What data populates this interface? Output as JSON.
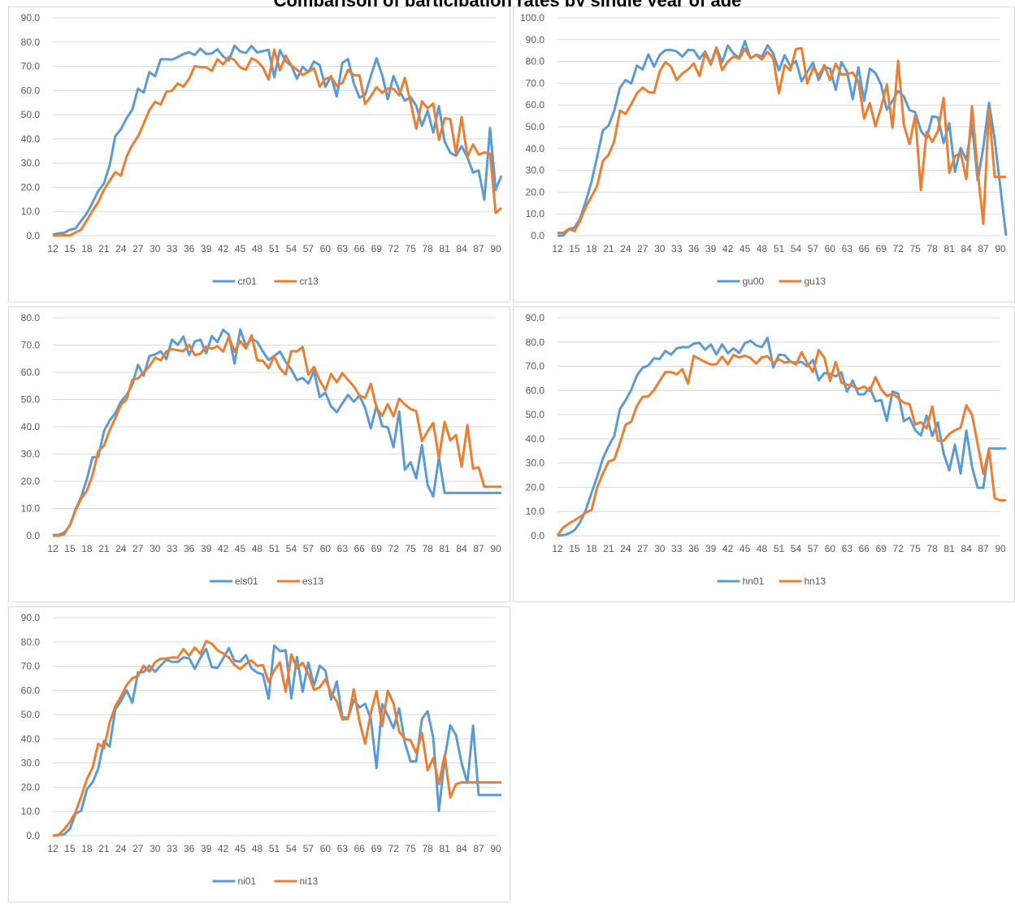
{
  "page_title": "Comparison of participation rates by single year of age",
  "colors": {
    "series1": "#5B9BD5",
    "series2": "#ED7D31",
    "grid": "#D9D9D9",
    "axis_text": "#595959",
    "border": "#D9D9D9"
  },
  "chart_data": [
    {
      "type": "line",
      "x_start": 12,
      "x_end": 90,
      "x_tick_labels": [
        "12",
        "15",
        "18",
        "21",
        "24",
        "27",
        "30",
        "33",
        "36",
        "39",
        "42",
        "45",
        "48",
        "51",
        "54",
        "57",
        "60",
        "63",
        "66",
        "69",
        "72",
        "75",
        "78",
        "81",
        "84",
        "87",
        "90"
      ],
      "ylim": [
        0,
        90
      ],
      "y_tick_labels": [
        "0.0",
        "10.0",
        "20.0",
        "30.0",
        "40.0",
        "50.0",
        "60.0",
        "70.0",
        "80.0",
        "90.0"
      ],
      "grid": true,
      "legend_position": "bottom",
      "series": [
        {
          "name": "cr01",
          "values": [
            0.4,
            1.0,
            1.2,
            2.5,
            3.0,
            6.2,
            9.3,
            13.7,
            18.5,
            21.6,
            29.0,
            41.2,
            44.0,
            48.6,
            52.1,
            60.7,
            59.2,
            67.6,
            65.9,
            72.9,
            72.9,
            72.8,
            73.8,
            75.1,
            75.8,
            74.7,
            77.3,
            75.1,
            75.3,
            77.0,
            74.1,
            72.4,
            78.5,
            76.1,
            75.5,
            78.4,
            75.7,
            76.3,
            76.8,
            65.5,
            76.7,
            72.1,
            70.3,
            64.8,
            69.8,
            67.6,
            72.0,
            70.5,
            61.5,
            66.0,
            57.5,
            71.5,
            73.0,
            63.0,
            57.1,
            58.2,
            66.0,
            73.3,
            66.4,
            56.4,
            66.0,
            60.1,
            55.8,
            57.3,
            53.7,
            45.4,
            51.6,
            42.6,
            53.5,
            39.0,
            34.3,
            33.0,
            37.0,
            32.4,
            26.1,
            27.0,
            14.9,
            44.5,
            18.9,
            24.8
          ]
        },
        {
          "name": "cr13",
          "values": [
            0.1,
            0.1,
            0.2,
            0.1,
            1.3,
            2.6,
            6.4,
            10.3,
            13.9,
            19.0,
            22.7,
            26.3,
            24.8,
            32.7,
            37.5,
            41.0,
            46.3,
            51.9,
            55.3,
            54.2,
            59.5,
            59.9,
            62.9,
            61.6,
            64.9,
            70.1,
            69.6,
            69.6,
            68.1,
            72.9,
            70.8,
            73.9,
            72.5,
            69.5,
            68.6,
            73.3,
            72.1,
            69.5,
            64.5,
            76.9,
            68.3,
            74.4,
            70.4,
            68.6,
            66.4,
            67.7,
            69.2,
            61.7,
            64.8,
            65.6,
            61.9,
            63.1,
            68.5,
            66.3,
            66.3,
            54.4,
            57.6,
            61.4,
            59.0,
            60.9,
            60.7,
            58.0,
            65.2,
            55.1,
            44.2,
            55.5,
            52.7,
            54.6,
            39.6,
            48.5,
            48.2,
            34.2,
            49.1,
            32.6,
            37.7,
            33.5,
            34.4,
            34.0,
            9.4,
            11.5
          ]
        }
      ]
    },
    {
      "type": "line",
      "x_start": 12,
      "x_end": 90,
      "x_tick_labels": [
        "12",
        "15",
        "18",
        "21",
        "24",
        "27",
        "30",
        "33",
        "36",
        "39",
        "42",
        "45",
        "48",
        "51",
        "54",
        "57",
        "60",
        "63",
        "66",
        "69",
        "72",
        "75",
        "78",
        "81",
        "84",
        "87",
        "90"
      ],
      "ylim": [
        0,
        100
      ],
      "y_tick_labels": [
        "0.0",
        "10.0",
        "20.0",
        "30.0",
        "40.0",
        "50.0",
        "60.0",
        "70.0",
        "80.0",
        "90.0",
        "100.0"
      ],
      "grid": true,
      "legend_position": "bottom",
      "series": [
        {
          "name": "gu00",
          "values": [
            0.0,
            0.1,
            2.9,
            3.8,
            8.0,
            15.9,
            24.8,
            36.4,
            48.4,
            50.5,
            57.5,
            67.9,
            71.5,
            69.9,
            78.1,
            76.3,
            83.3,
            77.6,
            83.0,
            85.2,
            85.3,
            84.6,
            82.2,
            85.3,
            85.2,
            81.2,
            84.6,
            79.1,
            86.4,
            79.6,
            87.3,
            83.6,
            81.7,
            89.3,
            81.5,
            83.1,
            82.2,
            87.4,
            83.6,
            75.9,
            82.9,
            77.8,
            80.2,
            70.9,
            75.3,
            79.4,
            71.5,
            77.5,
            76.7,
            66.9,
            79.7,
            75.3,
            62.7,
            77.3,
            61.9,
            76.7,
            74.7,
            69.3,
            57.8,
            61.9,
            66.4,
            63.9,
            57.7,
            56.7,
            48.2,
            44.7,
            54.8,
            54.3,
            42.6,
            51.6,
            29.3,
            40.3,
            34.9,
            50.8,
            25.4,
            40.6,
            61.0,
            44.3,
            22.2,
            0.0
          ]
        },
        {
          "name": "gu13",
          "values": [
            1.3,
            1.3,
            3.2,
            2.1,
            6.9,
            13.2,
            18.0,
            23.0,
            34.4,
            37.1,
            43.5,
            57.5,
            55.9,
            60.4,
            65.4,
            68.0,
            66.0,
            65.6,
            75.4,
            79.7,
            77.6,
            71.5,
            74.5,
            76.3,
            79.1,
            73.3,
            83.8,
            78.5,
            86.0,
            76.0,
            79.9,
            82.2,
            81.3,
            85.8,
            81.5,
            83.0,
            80.9,
            84.4,
            81.5,
            65.4,
            78.4,
            75.9,
            85.7,
            86.1,
            69.8,
            77.0,
            73.5,
            78.3,
            71.4,
            79.0,
            74.0,
            74.2,
            74.9,
            70.8,
            53.8,
            60.9,
            50.2,
            59.0,
            69.4,
            49.6,
            80.3,
            50.9,
            42.1,
            55.3,
            21.0,
            47.7,
            43.1,
            47.9,
            63.2,
            28.9,
            36.5,
            38.0,
            26.0,
            59.4,
            29.6,
            5.5,
            58.1,
            27.0,
            27.0,
            27.0
          ]
        }
      ]
    },
    {
      "type": "line",
      "x_start": 12,
      "x_end": 90,
      "x_tick_labels": [
        "12",
        "15",
        "18",
        "21",
        "24",
        "27",
        "30",
        "33",
        "36",
        "39",
        "42",
        "45",
        "48",
        "51",
        "54",
        "57",
        "60",
        "63",
        "66",
        "69",
        "72",
        "75",
        "78",
        "81",
        "84",
        "87",
        "90"
      ],
      "ylim": [
        0,
        80
      ],
      "y_tick_labels": [
        "0.0",
        "10.0",
        "20.0",
        "30.0",
        "40.0",
        "50.0",
        "60.0",
        "70.0",
        "80.0"
      ],
      "grid": true,
      "legend_position": "bottom",
      "series": [
        {
          "name": "els01",
          "values": [
            0.2,
            0.3,
            1.1,
            3.7,
            9.6,
            14.2,
            20.8,
            28.8,
            28.9,
            38.4,
            42.3,
            45.0,
            49.2,
            51.7,
            55.4,
            62.8,
            58.8,
            65.9,
            66.6,
            67.7,
            64.8,
            72.0,
            70.1,
            73.1,
            66.4,
            71.3,
            72.0,
            67.0,
            73.3,
            71.1,
            75.6,
            73.8,
            63.2,
            75.7,
            69.8,
            72.4,
            71.2,
            67.6,
            64.5,
            66.0,
            67.6,
            63.9,
            61.0,
            57.1,
            57.9,
            55.9,
            60.5,
            50.9,
            52.5,
            47.5,
            45.3,
            48.6,
            51.7,
            49.2,
            51.5,
            46.9,
            39.4,
            47.8,
            40.2,
            39.8,
            32.5,
            45.6,
            24.2,
            27.0,
            21.1,
            33.3,
            18.6,
            14.4,
            28.8,
            15.7,
            15.7,
            15.7,
            15.7,
            15.7,
            15.7,
            15.7,
            15.7,
            15.7,
            15.7,
            15.7
          ]
        },
        {
          "name": "es13",
          "values": [
            0.0,
            0.0,
            0.5,
            4.0,
            9.2,
            13.6,
            16.5,
            22.3,
            31.0,
            33.0,
            38.7,
            43.1,
            48.1,
            50.1,
            57.3,
            57.8,
            59.9,
            62.2,
            65.4,
            64.4,
            67.6,
            68.5,
            68.1,
            67.8,
            70.1,
            66.3,
            66.9,
            69.4,
            68.6,
            69.6,
            67.6,
            73.1,
            67.6,
            71.5,
            68.7,
            73.6,
            64.4,
            64.2,
            61.5,
            65.9,
            61.4,
            59.2,
            67.8,
            67.7,
            69.3,
            59.1,
            62.0,
            57.0,
            53.4,
            59.4,
            56.3,
            59.7,
            57.2,
            54.9,
            51.5,
            50.6,
            55.8,
            47.0,
            44.0,
            48.3,
            43.8,
            50.3,
            48.2,
            46.5,
            45.7,
            34.7,
            38.3,
            41.4,
            28.5,
            41.8,
            35.0,
            37.0,
            25.3,
            40.6,
            24.6,
            25.1,
            18.0,
            18.0,
            18.0,
            18.0
          ]
        }
      ]
    },
    {
      "type": "line",
      "x_start": 12,
      "x_end": 90,
      "x_tick_labels": [
        "12",
        "15",
        "18",
        "21",
        "24",
        "27",
        "30",
        "33",
        "36",
        "39",
        "42",
        "45",
        "48",
        "51",
        "54",
        "57",
        "60",
        "63",
        "66",
        "69",
        "72",
        "75",
        "78",
        "81",
        "84",
        "87",
        "90"
      ],
      "ylim": [
        0,
        90
      ],
      "y_tick_labels": [
        "0.0",
        "10.0",
        "20.0",
        "30.0",
        "40.0",
        "50.0",
        "60.0",
        "70.0",
        "80.0",
        "90.0"
      ],
      "grid": true,
      "legend_position": "bottom",
      "series": [
        {
          "name": "hn01",
          "values": [
            0.0,
            0.2,
            0.9,
            2.3,
            5.6,
            10.6,
            17.7,
            24.4,
            31.9,
            37.0,
            41.2,
            52.4,
            55.9,
            60.3,
            66.2,
            69.4,
            70.3,
            73.3,
            73.0,
            76.3,
            74.8,
            77.4,
            77.9,
            77.8,
            79.3,
            79.7,
            76.8,
            79.0,
            74.9,
            79.1,
            75.4,
            77.4,
            75.5,
            79.5,
            80.5,
            78.6,
            77.9,
            81.7,
            69.5,
            74.8,
            74.6,
            71.9,
            71.4,
            71.8,
            70.0,
            72.6,
            64.2,
            67.2,
            66.9,
            65.8,
            67.5,
            59.5,
            64.1,
            58.4,
            58.4,
            61.2,
            55.5,
            56.0,
            47.5,
            59.5,
            58.7,
            47.3,
            48.8,
            43.6,
            41.4,
            49.6,
            41.2,
            46.8,
            34.1,
            27.0,
            37.5,
            25.7,
            43.5,
            28.5,
            19.8,
            19.8,
            36.0,
            36.0,
            36.0,
            36.0
          ]
        },
        {
          "name": "hn13",
          "values": [
            0.0,
            3.4,
            5.0,
            6.4,
            7.8,
            9.6,
            10.6,
            20.0,
            25.7,
            30.6,
            31.5,
            38.3,
            45.8,
            47.1,
            53.7,
            57.3,
            57.6,
            60.2,
            63.9,
            67.6,
            67.6,
            66.7,
            68.8,
            62.8,
            74.3,
            73.0,
            71.8,
            70.8,
            70.8,
            74.0,
            70.8,
            74.7,
            73.6,
            74.4,
            73.4,
            71.1,
            73.7,
            74.1,
            71.4,
            72.9,
            71.5,
            72.0,
            70.7,
            75.8,
            71.3,
            67.6,
            76.7,
            73.5,
            63.9,
            71.8,
            63.2,
            62.4,
            61.9,
            60.6,
            61.6,
            59.8,
            65.5,
            60.5,
            57.7,
            58.6,
            56.9,
            54.9,
            54.4,
            45.9,
            46.9,
            44.3,
            53.4,
            39.2,
            39.2,
            42.0,
            43.6,
            44.6,
            53.9,
            49.9,
            37.7,
            25.6,
            35.7,
            15.5,
            14.6,
            14.6
          ]
        }
      ]
    },
    {
      "type": "line",
      "x_start": 12,
      "x_end": 90,
      "x_tick_labels": [
        "12",
        "15",
        "18",
        "21",
        "24",
        "27",
        "30",
        "33",
        "36",
        "39",
        "42",
        "45",
        "48",
        "51",
        "54",
        "57",
        "60",
        "63",
        "66",
        "69",
        "72",
        "75",
        "78",
        "81",
        "84",
        "87",
        "90"
      ],
      "ylim": [
        0,
        90
      ],
      "y_tick_labels": [
        "0.0",
        "10.0",
        "20.0",
        "30.0",
        "40.0",
        "50.0",
        "60.0",
        "70.0",
        "80.0",
        "90.0"
      ],
      "grid": true,
      "legend_position": "bottom",
      "series": [
        {
          "name": "ni01",
          "values": [
            0.0,
            0.3,
            0.5,
            2.8,
            9.1,
            10.3,
            19.1,
            22.0,
            27.6,
            39.1,
            36.8,
            52.2,
            55.6,
            60.0,
            54.9,
            67.4,
            67.6,
            70.2,
            67.7,
            70.3,
            72.7,
            71.8,
            71.8,
            73.6,
            73.3,
            68.9,
            73.5,
            77.1,
            69.6,
            69.3,
            73.2,
            77.5,
            72.2,
            71.9,
            74.6,
            69.0,
            67.4,
            66.6,
            56.6,
            78.5,
            76.2,
            76.6,
            56.7,
            73.8,
            59.4,
            71.5,
            62.1,
            70.2,
            68.2,
            56.2,
            63.7,
            48.9,
            48.7,
            56.0,
            53.0,
            54.5,
            48.3,
            27.9,
            54.3,
            49.7,
            44.4,
            52.6,
            38.4,
            30.7,
            30.7,
            48.2,
            51.4,
            40.5,
            10.2,
            31.8,
            45.6,
            41.6,
            29.8,
            21.8,
            45.4,
            16.8,
            16.8,
            16.8,
            16.8,
            16.8
          ]
        },
        {
          "name": "ni13",
          "values": [
            0.0,
            0.3,
            2.6,
            5.7,
            9.6,
            16.2,
            23.3,
            28.0,
            38.0,
            36.1,
            46.6,
            53.5,
            57.5,
            62.2,
            65.0,
            66.0,
            70.2,
            67.8,
            71.6,
            73.1,
            73.2,
            73.6,
            73.5,
            77.1,
            74.4,
            77.7,
            75.1,
            80.4,
            79.3,
            76.6,
            75.3,
            73.5,
            70.5,
            68.8,
            71.0,
            72.4,
            70.1,
            70.5,
            63.5,
            68.3,
            71.6,
            59.4,
            74.9,
            69.2,
            71.4,
            66.9,
            60.2,
            61.3,
            64.6,
            58.9,
            55.5,
            48.0,
            48.3,
            60.4,
            47.3,
            38.0,
            50.6,
            59.7,
            45.3,
            59.8,
            54.6,
            43.0,
            40.0,
            39.4,
            34.2,
            42.4,
            27.0,
            32.0,
            21.2,
            33.2,
            15.8,
            21.3,
            22.0,
            22.0,
            22.0,
            22.0,
            22.0,
            22.0,
            22.0,
            22.0
          ]
        }
      ]
    }
  ]
}
